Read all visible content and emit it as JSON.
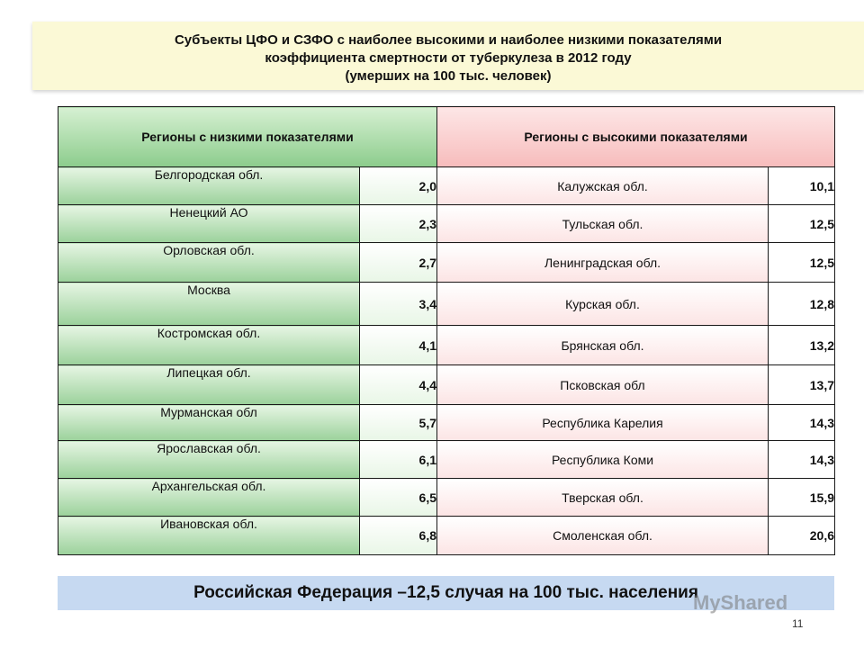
{
  "title": {
    "line1": "Субъекты ЦФО и СЗФО с наиболее высокими и наиболее низкими показателями",
    "line2": "коэффициента  смертности  от туберкулеза  в 2012 году",
    "line3": "(умерших  на 100 тыс. человек)"
  },
  "headers": {
    "low": "Регионы с  низкими  показателями",
    "high": "Регионы с высокими показателями"
  },
  "rows": [
    {
      "low_name": "Белгородская   обл.",
      "low_value": "2,0",
      "high_name": "Калужская  обл.",
      "high_value": "10,1"
    },
    {
      "low_name": "Ненецкий  АО",
      "low_value": "2,3",
      "high_name": "Тульская  обл.",
      "high_value": "12,5"
    },
    {
      "low_name": "Орловская  обл.",
      "low_value": "2,7",
      "high_name": "Ленинградская   обл.",
      "high_value": "12,5"
    },
    {
      "low_name": "Москва",
      "low_value": "3,4",
      "high_name": "Курская  обл.",
      "high_value": "12,8"
    },
    {
      "low_name": "Костромская  обл.",
      "low_value": "4,1",
      "high_name": "Брянская  обл.",
      "high_value": "13,2"
    },
    {
      "low_name": "Липецкая  обл.",
      "low_value": "4,4",
      "high_name": "Псковская  обл",
      "high_value": "13,7"
    },
    {
      "low_name": "Мурманская  обл",
      "low_value": "5,7",
      "high_name": "Республика Карелия",
      "high_value": "14,3"
    },
    {
      "low_name": "Ярославская  обл.",
      "low_value": "6,1",
      "high_name": "Республика Коми",
      "high_value": "14,3"
    },
    {
      "low_name": "Архангельская  обл.",
      "low_value": "6,5",
      "high_name": "Тверская  обл.",
      "high_value": "15,9"
    },
    {
      "low_name": "Ивановская   обл.",
      "low_value": "6,8",
      "high_name": "Смоленская   обл.",
      "high_value": "20,6"
    }
  ],
  "footer": "Российская Федерация –12,5 случая на 100 тыс. населения",
  "watermark": "MyShared",
  "page_number": "11"
}
